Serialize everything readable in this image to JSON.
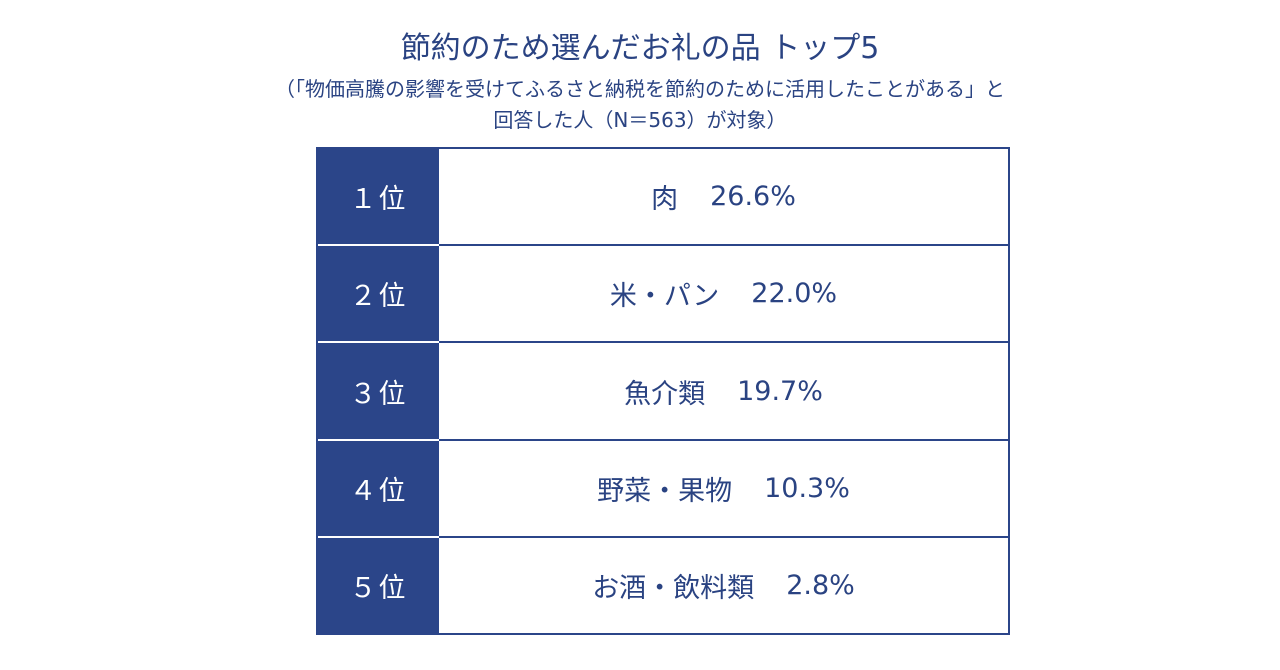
{
  "chart_data": {
    "type": "table",
    "title": "節約のため選んだお礼の品 トップ5",
    "subtitle_line1": "（「物価高騰の影響を受けてふるさと納税を節約のために活用したことがある」と",
    "subtitle_line2": "回答した人（N＝563）が対象）",
    "rows": [
      {
        "rank": "１位",
        "item": "肉",
        "percent": "26.6%",
        "value": 26.6
      },
      {
        "rank": "２位",
        "item": "米・パン",
        "percent": "22.0%",
        "value": 22.0
      },
      {
        "rank": "３位",
        "item": "魚介類",
        "percent": "19.7%",
        "value": 19.7
      },
      {
        "rank": "４位",
        "item": "野菜・果物",
        "percent": "10.3%",
        "value": 10.3
      },
      {
        "rank": "５位",
        "item": "お酒・飲料類",
        "percent": "2.8%",
        "value": 2.8
      }
    ]
  },
  "colors": {
    "accent": "#2b4589",
    "text": "#2a4382",
    "background": "#ffffff"
  }
}
